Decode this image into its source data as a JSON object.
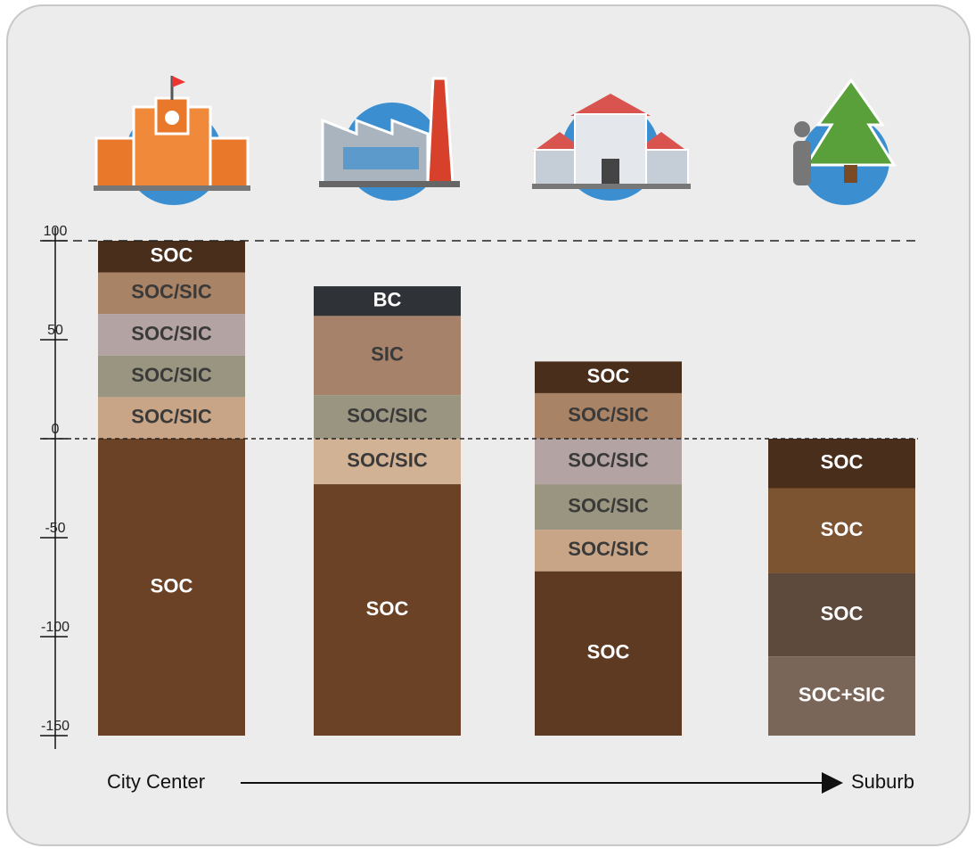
{
  "axis": {
    "range": [
      100,
      -150
    ],
    "ticks": [
      100,
      50,
      0,
      -50,
      -100,
      -150
    ],
    "guides": [
      100,
      0
    ]
  },
  "columns": [
    {
      "layers": [
        {
          "label": "SOC",
          "top": 100,
          "bottom": 84,
          "color": "#4a2e1c"
        },
        {
          "label": "SOC/SIC",
          "top": 84,
          "bottom": 63,
          "color": "#a88366"
        },
        {
          "label": "SOC/SIC",
          "top": 63,
          "bottom": 42,
          "color": "#b3a3a3"
        },
        {
          "label": "SOC/SIC",
          "top": 42,
          "bottom": 21,
          "color": "#9a9580"
        },
        {
          "label": "SOC/SIC",
          "top": 21,
          "bottom": 0,
          "color": "#c8a586"
        },
        {
          "label": "SOC",
          "top": 0,
          "bottom": -150,
          "color": "#6b4226"
        }
      ]
    },
    {
      "layers": [
        {
          "label": "BC",
          "top": 77,
          "bottom": 62,
          "color": "#2f3236"
        },
        {
          "label": "SIC",
          "top": 62,
          "bottom": 22,
          "color": "#a6826a"
        },
        {
          "label": "SOC/SIC",
          "top": 22,
          "bottom": 0,
          "color": "#9a9580"
        },
        {
          "label": "SOC/SIC",
          "top": 0,
          "bottom": -23,
          "color": "#d2b294"
        },
        {
          "label": "SOC",
          "top": -23,
          "bottom": -150,
          "color": "#6b4226"
        }
      ]
    },
    {
      "layers": [
        {
          "label": "SOC",
          "top": 39,
          "bottom": 23,
          "color": "#4a2e1c"
        },
        {
          "label": "SOC/SIC",
          "top": 23,
          "bottom": 0,
          "color": "#a88366"
        },
        {
          "label": "SOC/SIC",
          "top": 0,
          "bottom": -23,
          "color": "#b3a3a3"
        },
        {
          "label": "SOC/SIC",
          "top": -23,
          "bottom": -46,
          "color": "#9a9580"
        },
        {
          "label": "SOC/SIC",
          "top": -46,
          "bottom": -67,
          "color": "#c8a586"
        },
        {
          "label": "SOC",
          "top": -67,
          "bottom": -150,
          "color": "#5e3a22"
        }
      ]
    },
    {
      "layers": [
        {
          "label": "SOC",
          "top": 0,
          "bottom": -25,
          "color": "#4a2e1c"
        },
        {
          "label": "SOC",
          "top": -25,
          "bottom": -68,
          "color": "#7d5432"
        },
        {
          "label": "SOC",
          "top": -68,
          "bottom": -110,
          "color": "#5e4a3c"
        },
        {
          "label": "SOC+SIC",
          "top": -110,
          "bottom": -150,
          "color": "#7a6658"
        }
      ]
    }
  ],
  "direction": {
    "start": "City Center",
    "end": "Suburb"
  }
}
